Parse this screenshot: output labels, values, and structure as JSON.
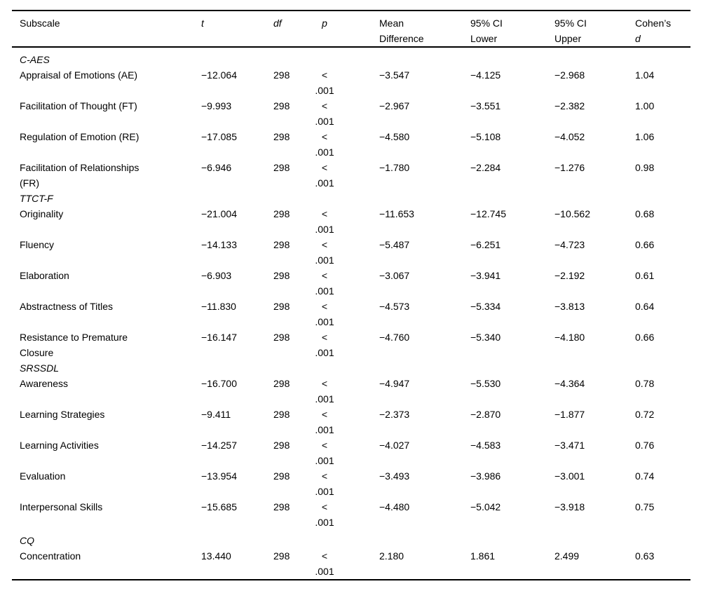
{
  "page": {
    "background": "#ffffff",
    "text_color": "#000000",
    "rule_color": "#000000"
  },
  "table": {
    "columns": [
      {
        "id": "subscale",
        "line1": "Subscale",
        "line2": "",
        "italic": false
      },
      {
        "id": "t",
        "line1": "t",
        "line2": "",
        "italic": true
      },
      {
        "id": "df",
        "line1": "df",
        "line2": "",
        "italic": true
      },
      {
        "id": "p",
        "line1": "p",
        "line2": "",
        "italic": true
      },
      {
        "id": "mean_difference",
        "line1": "Mean",
        "line2": "Difference",
        "italic": false
      },
      {
        "id": "ci_lower",
        "line1": "95% CI",
        "line2": "Lower",
        "italic": false
      },
      {
        "id": "ci_upper",
        "line1": "95% CI",
        "line2": "Upper",
        "italic": false
      },
      {
        "id": "cohens_d",
        "line1": "Cohen’s",
        "line2": "d",
        "italic": false,
        "line2_italic": true
      }
    ],
    "sections": [
      {
        "name": "C-AES",
        "rows": [
          {
            "subscale": "Appraisal of Emotions (AE)",
            "t": "−12.064",
            "df": "298",
            "p": "< .001",
            "mean_difference": "−3.547",
            "ci_lower": "−4.125",
            "ci_upper": "−2.968",
            "cohens_d": "1.04"
          },
          {
            "subscale": "Facilitation of Thought (FT)",
            "t": "−9.993",
            "df": "298",
            "p": "< .001",
            "mean_difference": "−2.967",
            "ci_lower": "−3.551",
            "ci_upper": "−2.382",
            "cohens_d": "1.00"
          },
          {
            "subscale": "Regulation of Emotion (RE)",
            "t": "−17.085",
            "df": "298",
            "p": "< .001",
            "mean_difference": "−4.580",
            "ci_lower": "−5.108",
            "ci_upper": "−4.052",
            "cohens_d": "1.06"
          },
          {
            "subscale": "Facilitation of Relationships (FR)",
            "t": "−6.946",
            "df": "298",
            "p": "< .001",
            "mean_difference": "−1.780",
            "ci_lower": "−2.284",
            "ci_upper": "−1.276",
            "cohens_d": "0.98"
          }
        ]
      },
      {
        "name": "TTCT-F",
        "rows": [
          {
            "subscale": "Originality",
            "t": "−21.004",
            "df": "298",
            "p": "< .001",
            "mean_difference": "−11.653",
            "ci_lower": "−12.745",
            "ci_upper": "−10.562",
            "cohens_d": "0.68"
          },
          {
            "subscale": "Fluency",
            "t": "−14.133",
            "df": "298",
            "p": "< .001",
            "mean_difference": "−5.487",
            "ci_lower": "−6.251",
            "ci_upper": "−4.723",
            "cohens_d": "0.66"
          },
          {
            "subscale": "Elaboration",
            "t": "−6.903",
            "df": "298",
            "p": "< .001",
            "mean_difference": "−3.067",
            "ci_lower": "−3.941",
            "ci_upper": "−2.192",
            "cohens_d": "0.61"
          },
          {
            "subscale": "Abstractness of Titles",
            "t": "−11.830",
            "df": "298",
            "p": "< .001",
            "mean_difference": "−4.573",
            "ci_lower": "−5.334",
            "ci_upper": "−3.813",
            "cohens_d": "0.64"
          },
          {
            "subscale": "Resistance to Premature Closure",
            "t": "−16.147",
            "df": "298",
            "p": "< .001",
            "mean_difference": "−4.760",
            "ci_lower": "−5.340",
            "ci_upper": "−4.180",
            "cohens_d": "0.66"
          }
        ]
      },
      {
        "name": "SRSSDL",
        "rows": [
          {
            "subscale": "Awareness",
            "t": "−16.700",
            "df": "298",
            "p": "< .001",
            "mean_difference": "−4.947",
            "ci_lower": "−5.530",
            "ci_upper": "−4.364",
            "cohens_d": "0.78"
          },
          {
            "subscale": "Learning Strategies",
            "t": "−9.411",
            "df": "298",
            "p": "< .001",
            "mean_difference": "−2.373",
            "ci_lower": "−2.870",
            "ci_upper": "−1.877",
            "cohens_d": "0.72"
          },
          {
            "subscale": "Learning Activities",
            "t": "−14.257",
            "df": "298",
            "p": "< .001",
            "mean_difference": "−4.027",
            "ci_lower": "−4.583",
            "ci_upper": "−3.471",
            "cohens_d": "0.76"
          },
          {
            "subscale": "Evaluation",
            "t": "−13.954",
            "df": "298",
            "p": "< .001",
            "mean_difference": "−3.493",
            "ci_lower": "−3.986",
            "ci_upper": "−3.001",
            "cohens_d": "0.74"
          },
          {
            "subscale": "Interpersonal Skills",
            "t": "−15.685",
            "df": "298",
            "p": "< .001",
            "mean_difference": "−4.480",
            "ci_lower": "−5.042",
            "ci_upper": "−3.918",
            "cohens_d": "0.75"
          }
        ]
      },
      {
        "name": "CQ",
        "rows": [
          {
            "subscale": "Concentration",
            "t": "13.440",
            "df": "298",
            "p": "< .001",
            "mean_difference": "2.180",
            "ci_lower": "1.861",
            "ci_upper": "2.499",
            "cohens_d": "0.63"
          }
        ]
      }
    ]
  }
}
